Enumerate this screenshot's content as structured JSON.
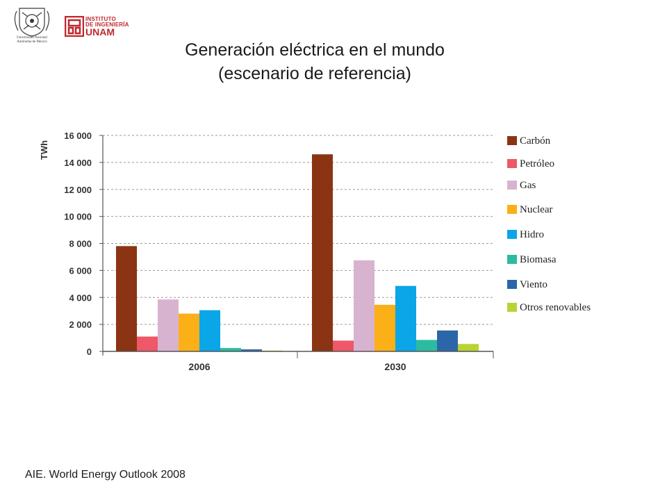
{
  "title": {
    "line1": "Generación eléctrica en el mundo",
    "line2": "(escenario de referencia)"
  },
  "source": "AIE. World Energy Outlook 2008",
  "logos": {
    "unam_caption": "Universidad Nacional Autónoma de México",
    "instituto_line1": "INSTITUTO",
    "instituto_line2": "DE INGENIERÍA",
    "instituto_line3": "UNAM"
  },
  "chart_data": {
    "type": "bar",
    "title": "",
    "xlabel": "",
    "ylabel": "TWh",
    "categories": [
      "2006",
      "2030"
    ],
    "ylim": [
      0,
      16000
    ],
    "yticks": [
      0,
      2000,
      4000,
      6000,
      8000,
      10000,
      12000,
      14000,
      16000
    ],
    "ytick_labels": [
      "0",
      "2 000",
      "4 000",
      "6 000",
      "8 000",
      "10 000",
      "12 000",
      "14 000",
      "16 000"
    ],
    "grid": true,
    "legend_position": "right",
    "series": [
      {
        "name": "Carbón",
        "color": "#8b3414",
        "values": [
          7800,
          14600
        ]
      },
      {
        "name": "Petróleo",
        "color": "#ee5868",
        "values": [
          1100,
          800
        ]
      },
      {
        "name": "Gas",
        "color": "#d8b3d0",
        "values": [
          3850,
          6750
        ]
      },
      {
        "name": "Nuclear",
        "color": "#fbb017",
        "values": [
          2800,
          3450
        ]
      },
      {
        "name": "Hidro",
        "color": "#0aa6e8",
        "values": [
          3050,
          4850
        ]
      },
      {
        "name": "Biomasa",
        "color": "#2bbba0",
        "values": [
          250,
          850
        ]
      },
      {
        "name": "Viento",
        "color": "#2b67a8",
        "values": [
          150,
          1550
        ]
      },
      {
        "name": "Otros renovables",
        "color": "#b8d433",
        "values": [
          60,
          550
        ]
      }
    ]
  }
}
